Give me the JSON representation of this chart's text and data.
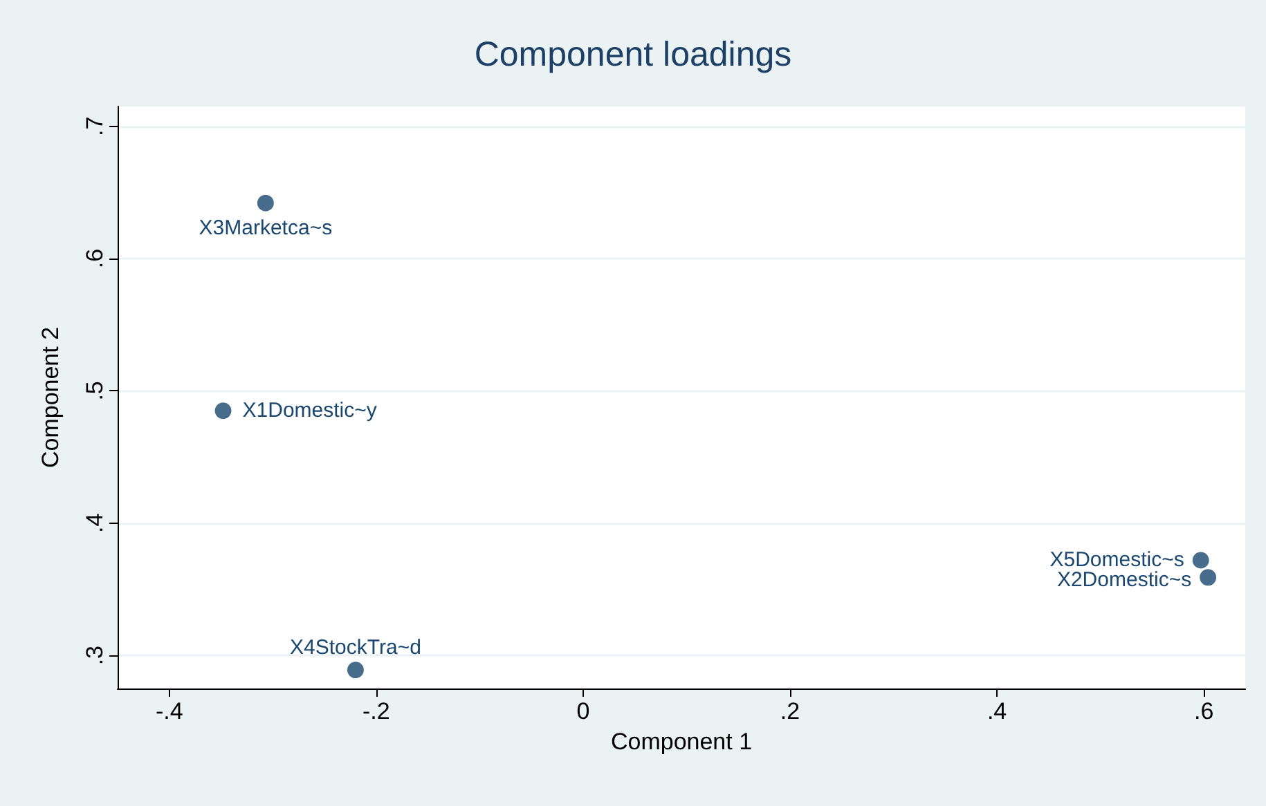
{
  "chart_data": {
    "type": "scatter",
    "title": "Component loadings",
    "xlabel": "Component 1",
    "ylabel": "Component 2",
    "x": [
      -0.348,
      0.604,
      -0.307,
      -0.22,
      0.597
    ],
    "series": [
      {
        "color": "#1a476f",
        "values": [
          0.485,
          0.359,
          0.642,
          0.289,
          0.372
        ]
      }
    ],
    "annotations": [
      {
        "text": "X1Domestic~y",
        "x": -0.348,
        "y": 0.485
      },
      {
        "text": "X2Domestic~s",
        "x": 0.604,
        "y": 0.359
      },
      {
        "text": "X3Marketca~s",
        "x": -0.307,
        "y": 0.642
      },
      {
        "text": "X4StockTra~d",
        "x": -0.22,
        "y": 0.289
      },
      {
        "text": "X5Domestic~s",
        "x": 0.597,
        "y": 0.372
      }
    ],
    "xlim": [
      -0.45,
      0.64
    ],
    "ylim": [
      0.275,
      0.715
    ],
    "xticks": [
      {
        "value": -0.4,
        "label": "-.4"
      },
      {
        "value": -0.2,
        "label": "-.2"
      },
      0,
      {
        "value": 0.2,
        "label": ".2"
      },
      {
        "value": 0.4,
        "label": ".4"
      },
      {
        "value": 0.6,
        "label": ".6"
      }
    ],
    "yticks": [
      {
        "value": 0.3,
        "label": ".3"
      },
      {
        "value": 0.4,
        "label": ".4"
      },
      {
        "value": 0.5,
        "label": ".5"
      },
      {
        "value": 0.6,
        "label": ".6"
      },
      {
        "value": 0.7,
        "label": ".7"
      }
    ],
    "grid": "y",
    "marker": "circle"
  }
}
